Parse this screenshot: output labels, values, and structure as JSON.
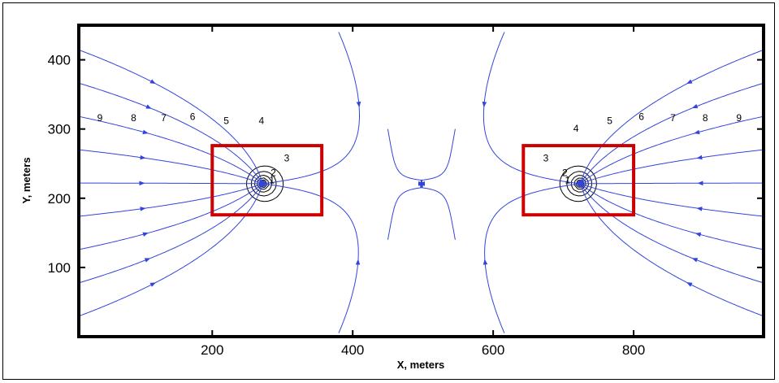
{
  "figure": {
    "x_axis_label": "X, meters",
    "y_axis_label": "Y, meters"
  },
  "chart_data": {
    "type": "contour",
    "xlabel": "X, meters",
    "ylabel": "Y, meters",
    "xlim": [
      10,
      985
    ],
    "ylim": [
      0,
      450
    ],
    "x_ticks": [
      200,
      400,
      600,
      800
    ],
    "y_ticks": [
      100,
      200,
      300,
      400
    ],
    "grid": false,
    "contour_levels": [
      "1",
      "2",
      "3",
      "4",
      "5",
      "6",
      "7",
      "8",
      "9"
    ],
    "contour_color": "#000000",
    "streamline_color": "#3344dd",
    "sinks": [
      {
        "x": 272,
        "y": 221
      },
      {
        "x": 724,
        "y": 221
      }
    ],
    "highlight_boxes": [
      {
        "x_range": [
          200,
          356
        ],
        "y_range": [
          176,
          276
        ],
        "color": "#cc0000"
      },
      {
        "x_range": [
          643,
          800
        ],
        "y_range": [
          176,
          276
        ],
        "color": "#cc0000"
      }
    ],
    "contour_labels": [
      {
        "text": "9",
        "x": 40,
        "y": 316
      },
      {
        "text": "8",
        "x": 88,
        "y": 316
      },
      {
        "text": "7",
        "x": 131,
        "y": 316
      },
      {
        "text": "6",
        "x": 172,
        "y": 318
      },
      {
        "text": "5",
        "x": 220,
        "y": 312
      },
      {
        "text": "4",
        "x": 270,
        "y": 312
      },
      {
        "text": "3",
        "x": 306,
        "y": 258
      },
      {
        "text": "2",
        "x": 287,
        "y": 237
      },
      {
        "text": "1",
        "x": 285,
        "y": 226
      },
      {
        "text": "1",
        "x": 706,
        "y": 226
      },
      {
        "text": "2",
        "x": 702,
        "y": 237
      },
      {
        "text": "3",
        "x": 675,
        "y": 258
      },
      {
        "text": "4",
        "x": 718,
        "y": 301
      },
      {
        "text": "5",
        "x": 766,
        "y": 312
      },
      {
        "text": "6",
        "x": 811,
        "y": 318
      },
      {
        "text": "7",
        "x": 856,
        "y": 316
      },
      {
        "text": "8",
        "x": 902,
        "y": 316
      },
      {
        "text": "9",
        "x": 950,
        "y": 316
      }
    ]
  }
}
